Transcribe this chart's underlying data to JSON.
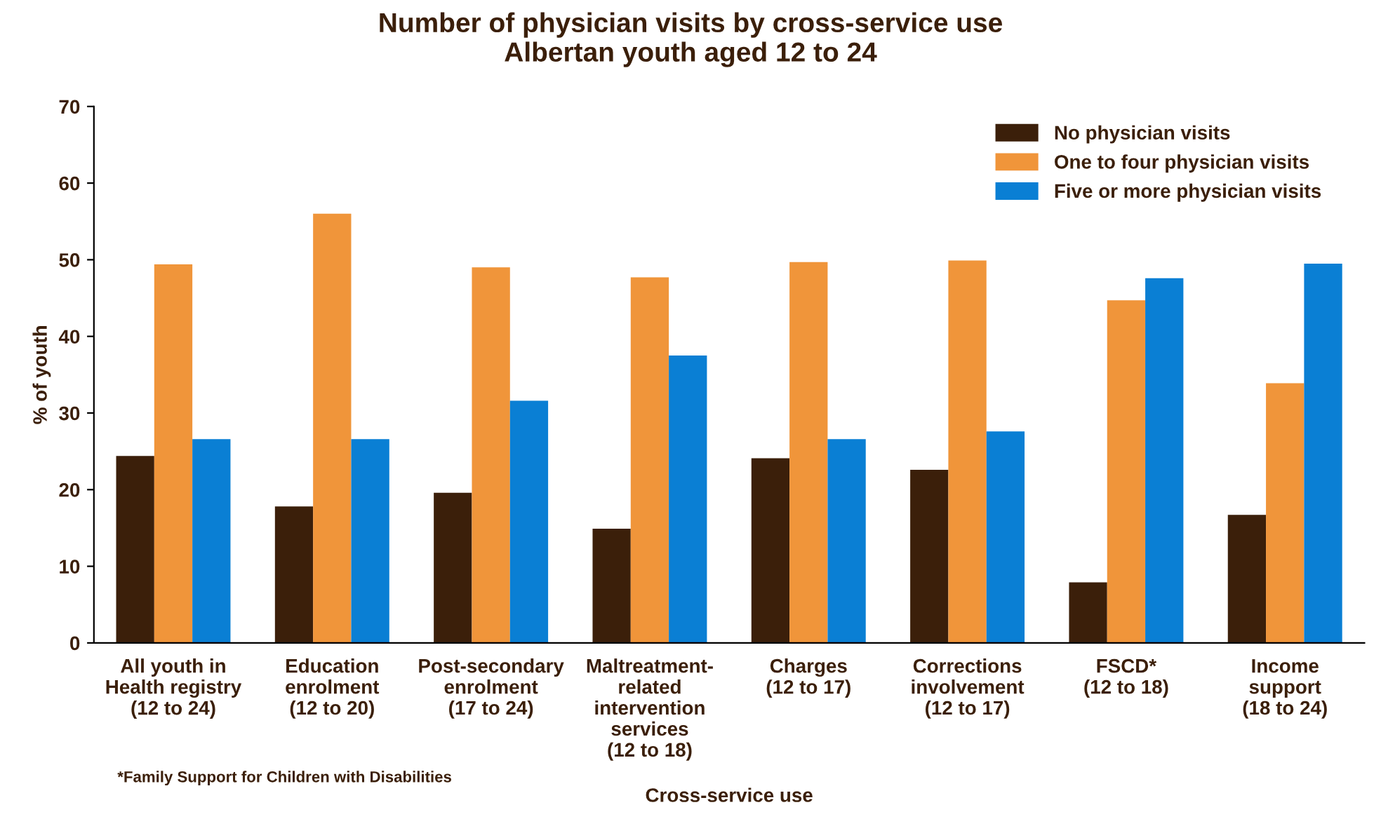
{
  "chart_data": {
    "type": "bar",
    "title": "Number of physician visits by cross-service use\nAlbertan youth aged 12 to 24",
    "xlabel": "Cross-service use",
    "ylabel": "% of youth",
    "categories": [
      "All youth in\nHealth registry\n(12 to 24)",
      "Education\nenrolment\n(12 to 20)",
      "Post-secondary\nenrolment\n(17 to 24)",
      "Maltreatment-\nrelated\nintervention\nservices\n(12 to 18)",
      "Charges\n(12 to 17)",
      "Corrections\ninvolvement\n(12 to 17)",
      "FSCD*\n(12 to 18)",
      "Income\nsupport\n(18 to 24)"
    ],
    "series": [
      {
        "name": "No physician visits",
        "color": "#3b1f0a",
        "values": [
          24.4,
          17.8,
          19.6,
          14.9,
          24.1,
          22.6,
          7.9,
          16.7
        ]
      },
      {
        "name": "One to four physician visits",
        "color": "#f0953a",
        "values": [
          49.4,
          56.0,
          49.0,
          47.7,
          49.7,
          49.9,
          44.7,
          33.9
        ]
      },
      {
        "name": "Five or more physician visits",
        "color": "#0a7fd4",
        "values": [
          26.6,
          26.6,
          31.6,
          37.5,
          26.6,
          27.6,
          47.6,
          49.5
        ]
      }
    ],
    "ylim": [
      0,
      70
    ],
    "yticks": [
      0,
      10,
      20,
      30,
      40,
      50,
      60,
      70
    ],
    "grid": false,
    "legend": "top right",
    "annotations": [
      "*Family Support for Children with Disabilities"
    ]
  }
}
